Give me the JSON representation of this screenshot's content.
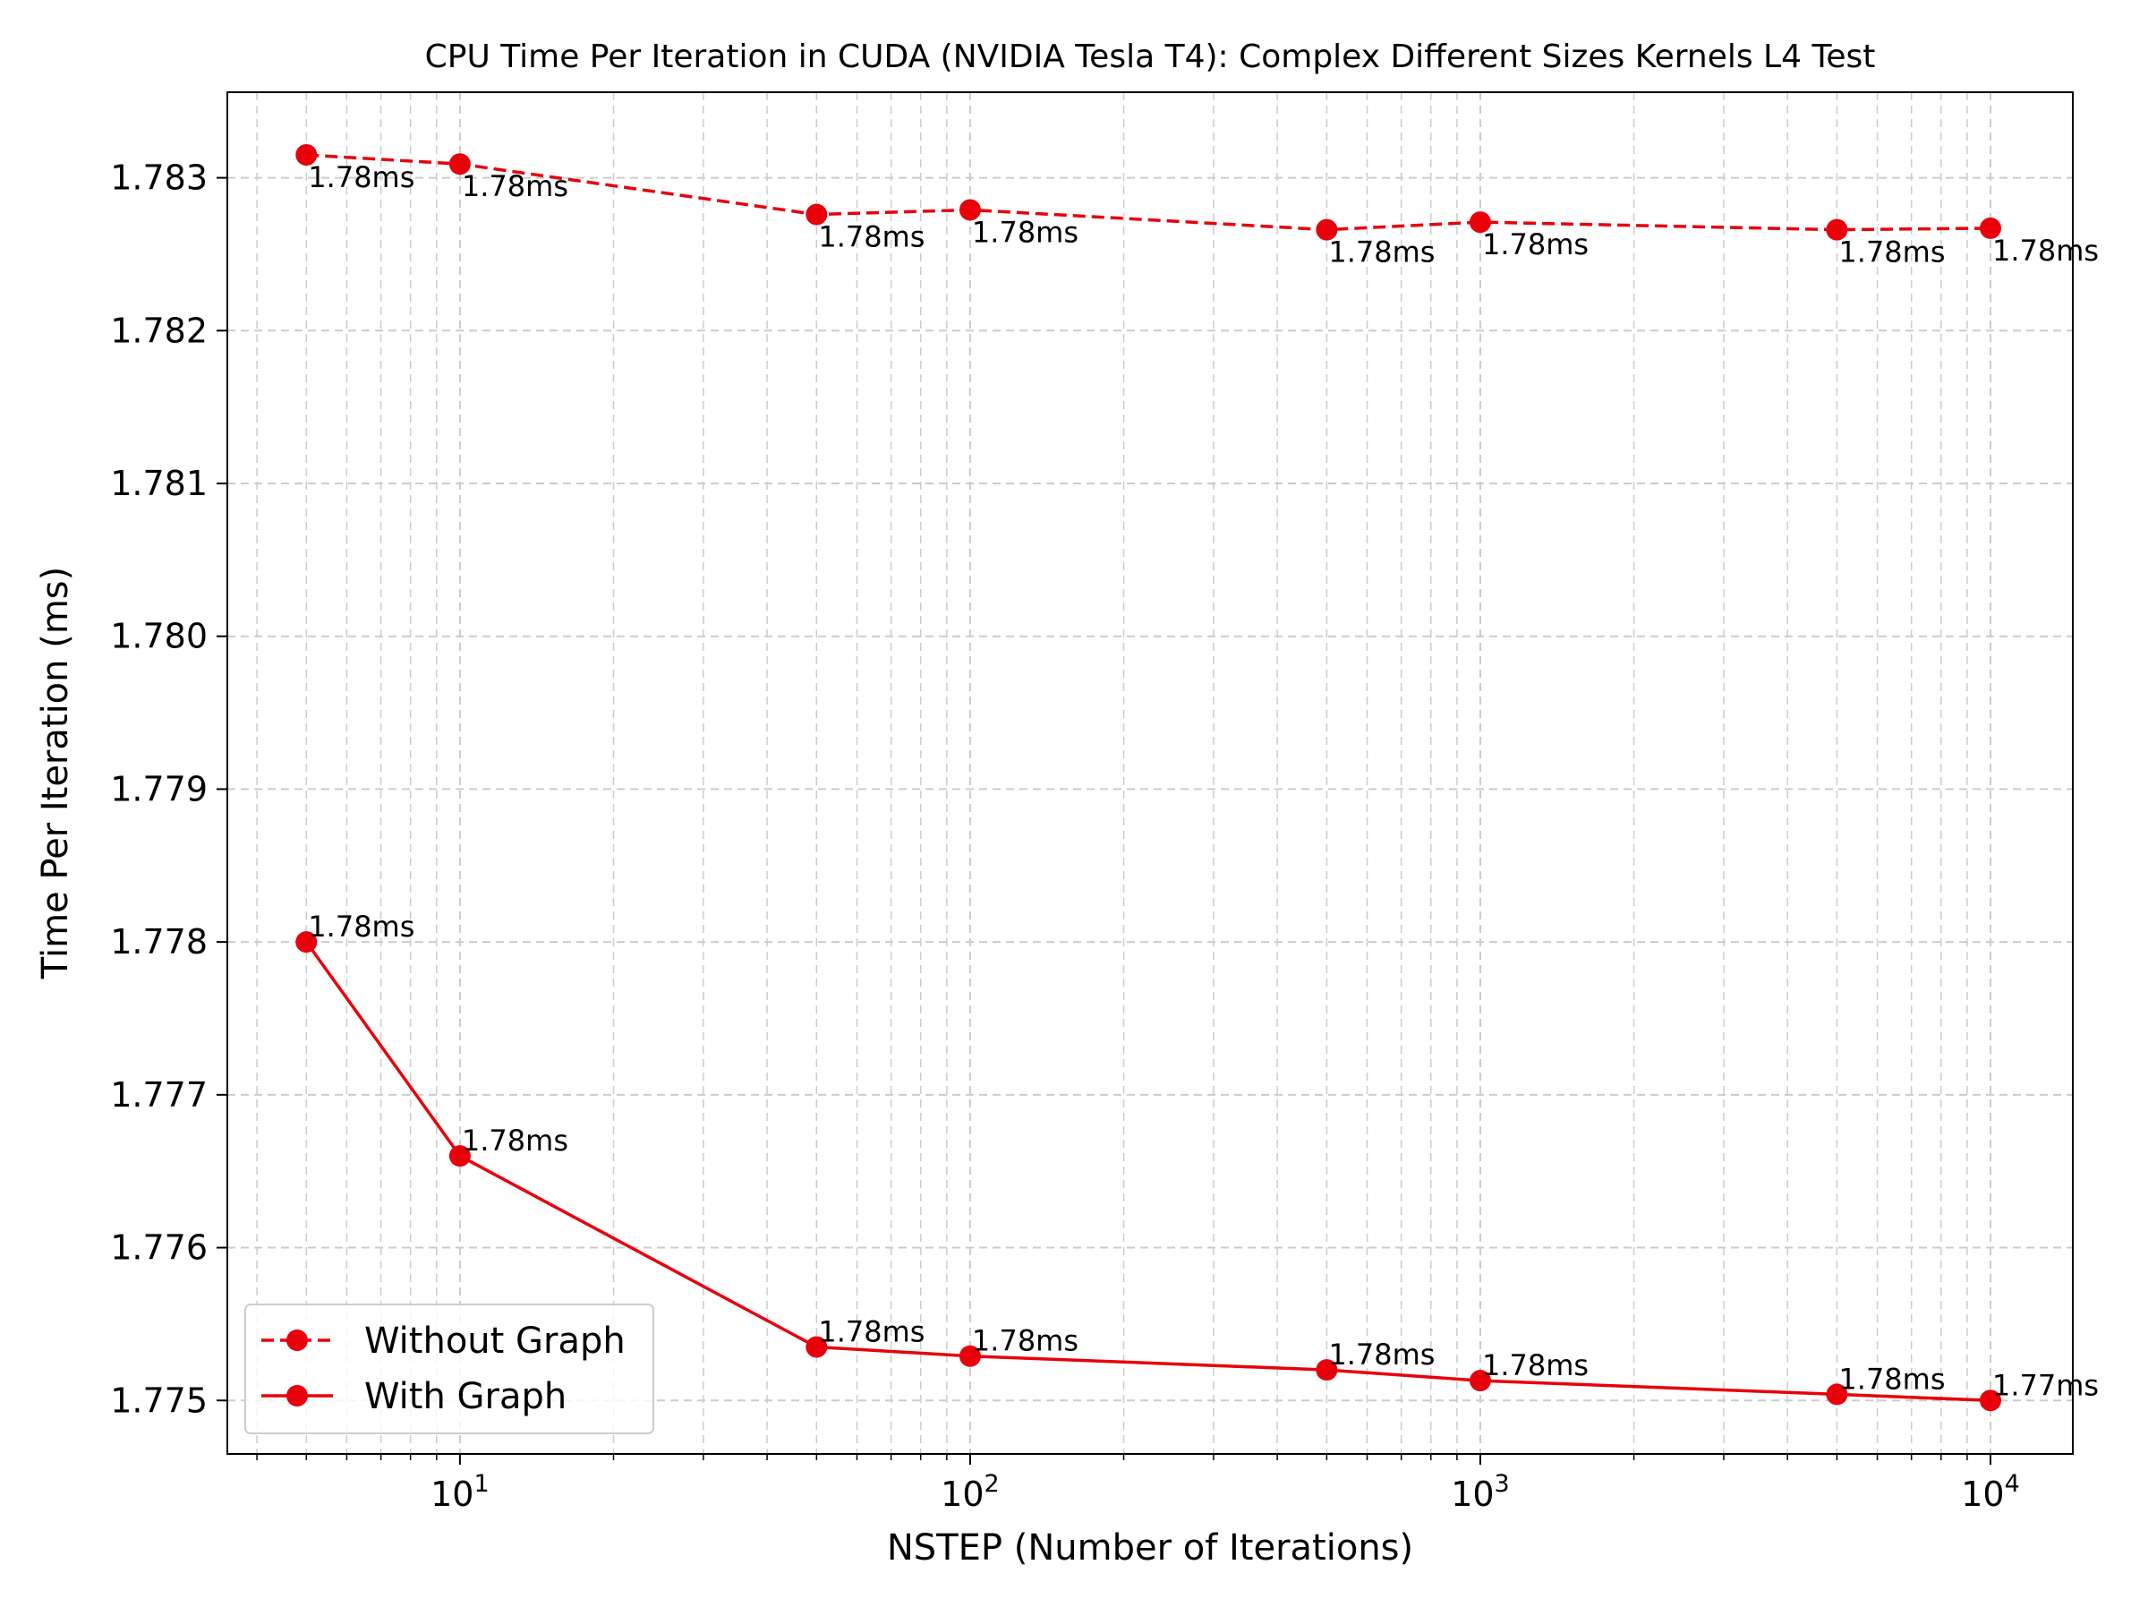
{
  "chart_data": {
    "type": "line",
    "title": "CPU Time Per Iteration in CUDA (NVIDIA Tesla T4): Complex Different Sizes Kernels L4 Test",
    "xlabel": "NSTEP (Number of Iterations)",
    "ylabel": "Time Per Iteration (ms)",
    "x_scale": "log",
    "x": [
      5,
      10,
      50,
      100,
      500,
      1000,
      5000,
      10000
    ],
    "xlim": [
      3.5,
      14500
    ],
    "ylim": [
      1.77465,
      1.78356
    ],
    "x_ticks": [
      {
        "value": 10,
        "base": "10",
        "exp": "1"
      },
      {
        "value": 100,
        "base": "10",
        "exp": "2"
      },
      {
        "value": 1000,
        "base": "10",
        "exp": "3"
      },
      {
        "value": 10000,
        "base": "10",
        "exp": "4"
      }
    ],
    "y_ticks": [
      {
        "value": 1.775,
        "label": "1.775"
      },
      {
        "value": 1.776,
        "label": "1.776"
      },
      {
        "value": 1.777,
        "label": "1.777"
      },
      {
        "value": 1.778,
        "label": "1.778"
      },
      {
        "value": 1.779,
        "label": "1.779"
      },
      {
        "value": 1.78,
        "label": "1.780"
      },
      {
        "value": 1.781,
        "label": "1.781"
      },
      {
        "value": 1.782,
        "label": "1.782"
      },
      {
        "value": 1.783,
        "label": "1.783"
      }
    ],
    "grid": true,
    "legend_position": "lower-left",
    "series": [
      {
        "name": "Without Graph",
        "style": "dashed",
        "color": "#e8000b",
        "label_position": "below",
        "values": [
          1.78315,
          1.78309,
          1.78276,
          1.78279,
          1.78266,
          1.78271,
          1.78266,
          1.78267
        ],
        "labels": [
          "1.78ms",
          "1.78ms",
          "1.78ms",
          "1.78ms",
          "1.78ms",
          "1.78ms",
          "1.78ms",
          "1.78ms"
        ]
      },
      {
        "name": "With Graph",
        "style": "solid",
        "color": "#e8000b",
        "label_position": "above",
        "values": [
          1.778,
          1.7766,
          1.77535,
          1.77529,
          1.7752,
          1.77513,
          1.77504,
          1.775
        ],
        "labels": [
          "1.78ms",
          "1.78ms",
          "1.78ms",
          "1.78ms",
          "1.78ms",
          "1.78ms",
          "1.78ms",
          "1.77ms"
        ]
      }
    ]
  }
}
